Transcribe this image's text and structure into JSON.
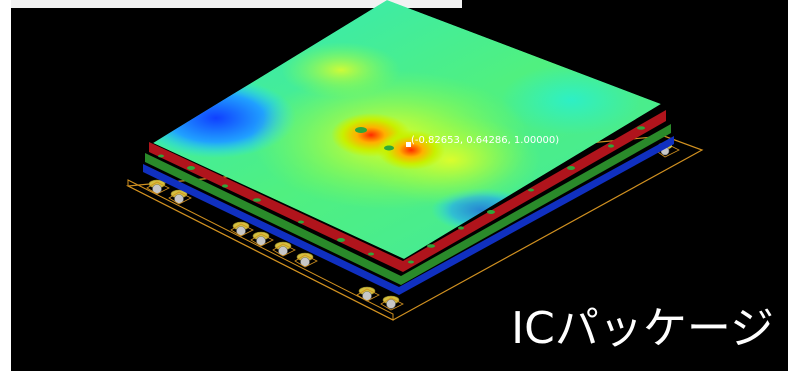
{
  "viewport": {
    "caption": "ICパッケージ",
    "probe_readout": "(-0.82653, 0.64286, 1.00000)"
  },
  "colors": {
    "background": "#000000",
    "surface_low": "#1e5cff",
    "surface_mid": "#20f08c",
    "surface_high": "#ff3a00",
    "red_layer": "#b0141c",
    "green_layer": "#2a8a2a",
    "blue_layer": "#1030c0",
    "outline": "#d09020",
    "pads": "#d4c040"
  }
}
